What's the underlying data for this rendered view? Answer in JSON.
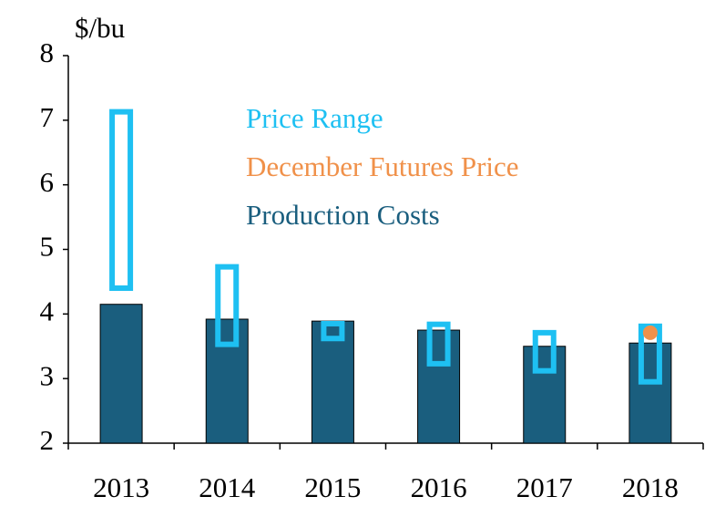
{
  "chart_data": {
    "type": "range-bar",
    "y_label": "$/bu",
    "categories": [
      "2013",
      "2014",
      "2015",
      "2016",
      "2017",
      "2018"
    ],
    "series": [
      {
        "name": "Price Range",
        "color": "#1ec0f2",
        "low": [
          4.4,
          3.53,
          3.62,
          3.23,
          3.12,
          2.95
        ],
        "high": [
          7.13,
          4.73,
          3.85,
          3.84,
          3.71,
          3.81
        ]
      },
      {
        "name": "December Futures Price",
        "color": "#f0914a",
        "values": [
          null,
          null,
          null,
          null,
          null,
          3.71
        ]
      },
      {
        "name": "Production Costs",
        "color": "#1a5e7e",
        "values": [
          4.15,
          3.92,
          3.89,
          3.75,
          3.5,
          3.55
        ]
      }
    ],
    "ylim": [
      2,
      8
    ],
    "yticks": [
      2,
      3,
      4,
      5,
      6,
      7,
      8
    ]
  }
}
